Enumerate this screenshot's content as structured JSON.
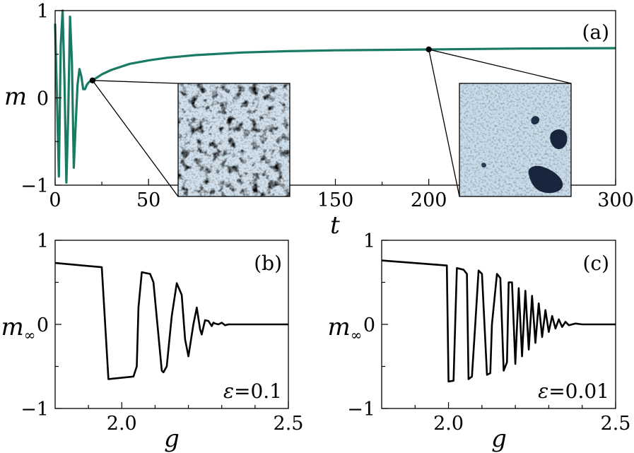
{
  "colors": {
    "trace_a": "#1a7a64",
    "trace_bc": "#000000",
    "inset_light": "#c7dbe9",
    "inset_dark": "#14223a"
  },
  "chart_data": [
    {
      "id": "a",
      "type": "line",
      "panel_label": "(a)",
      "xlabel": "t",
      "ylabel": "m",
      "xlim": [
        0,
        300
      ],
      "ylim": [
        -1,
        1
      ],
      "xticks": [
        0,
        50,
        150,
        200,
        300
      ],
      "xtick_labels": [
        "0",
        "50",
        "150",
        "200",
        "300"
      ],
      "yticks": [
        -1,
        0,
        1
      ],
      "ytick_labels": [
        "−1",
        "0",
        "1"
      ],
      "series": [
        {
          "name": "m(t)",
          "x": [
            0,
            1,
            2,
            3,
            4,
            5,
            6,
            7,
            8,
            9,
            10,
            11,
            12,
            13,
            14,
            15,
            16,
            17,
            18,
            19,
            20,
            25,
            30,
            40,
            50,
            60,
            75,
            100,
            125,
            150,
            175,
            200,
            225,
            250,
            275,
            300
          ],
          "y": [
            0.85,
            0.0,
            -0.9,
            0.6,
            1.0,
            0.2,
            -0.97,
            -0.2,
            0.93,
            0.4,
            -0.8,
            -0.3,
            0.15,
            0.33,
            0.25,
            0.1,
            0.1,
            0.15,
            0.18,
            0.19,
            0.2,
            0.27,
            0.32,
            0.39,
            0.43,
            0.46,
            0.49,
            0.52,
            0.535,
            0.545,
            0.55,
            0.555,
            0.56,
            0.565,
            0.568,
            0.57
          ]
        }
      ],
      "markers": [
        {
          "x": 20,
          "y": 0.2
        },
        {
          "x": 200,
          "y": 0.555
        }
      ],
      "insets": [
        {
          "name": "snapshot-t20",
          "pattern": "coarsening domains",
          "at_t": 20
        },
        {
          "name": "snapshot-t200",
          "pattern": "isolated droplets",
          "at_t": 200
        }
      ]
    },
    {
      "id": "b",
      "type": "line",
      "panel_label": "(b)",
      "annotation": {
        "symbol": "ε",
        "text": "=0.1"
      },
      "xlabel": "g",
      "ylabel": "m",
      "ylabel_sub": "∞",
      "xlim": [
        1.8,
        2.5
      ],
      "ylim": [
        -1,
        1
      ],
      "xticks": [
        2.0,
        2.5
      ],
      "xtick_labels": [
        "2.0",
        "2.5"
      ],
      "yticks": [
        -1,
        0,
        1
      ],
      "ytick_labels": [
        "−1",
        "0",
        "1"
      ],
      "series": [
        {
          "name": "m_inf(g)",
          "x": [
            1.8,
            1.94,
            1.96,
            2.035,
            2.045,
            2.05,
            2.06,
            2.085,
            2.095,
            2.12,
            2.125,
            2.135,
            2.15,
            2.165,
            2.18,
            2.19,
            2.2,
            2.215,
            2.225,
            2.235,
            2.24,
            2.25,
            2.26,
            2.27,
            2.275,
            2.28,
            2.29,
            2.3,
            2.31,
            2.32,
            2.35,
            2.4,
            2.45,
            2.5
          ],
          "y": [
            0.73,
            0.68,
            -0.65,
            -0.62,
            -0.5,
            0.2,
            0.62,
            0.6,
            0.5,
            -0.55,
            -0.57,
            -0.5,
            0.1,
            0.49,
            0.35,
            -0.18,
            -0.38,
            0.0,
            0.2,
            -0.06,
            -0.12,
            0.05,
            0.04,
            -0.02,
            0.02,
            0.01,
            0.0,
            0.02,
            -0.01,
            0.0,
            0.0,
            0.0,
            0.0,
            0.0
          ]
        }
      ]
    },
    {
      "id": "c",
      "type": "line",
      "panel_label": "(c)",
      "annotation": {
        "symbol": "ε",
        "text": "=0.01"
      },
      "xlabel": "g",
      "ylabel": "m",
      "ylabel_sub": "∞",
      "xlim": [
        1.8,
        2.5
      ],
      "ylim": [
        -1,
        1
      ],
      "xticks": [
        2.0,
        2.5
      ],
      "xtick_labels": [
        "2.0",
        "2.5"
      ],
      "yticks": [
        -1,
        0,
        1
      ],
      "ytick_labels": [
        "−1",
        "0",
        "1"
      ],
      "series": [
        {
          "name": "m_inf(g)",
          "x": [
            1.8,
            1.995,
            2.0,
            2.015,
            2.02,
            2.025,
            2.045,
            2.055,
            2.06,
            2.07,
            2.08,
            2.09,
            2.1,
            2.115,
            2.125,
            2.13,
            2.145,
            2.155,
            2.165,
            2.175,
            2.18,
            2.19,
            2.2,
            2.21,
            2.22,
            2.23,
            2.24,
            2.25,
            2.26,
            2.27,
            2.28,
            2.29,
            2.3,
            2.31,
            2.32,
            2.33,
            2.34,
            2.35,
            2.36,
            2.38,
            2.4,
            2.45,
            2.5
          ],
          "y": [
            0.76,
            0.7,
            -0.68,
            -0.67,
            0.0,
            0.67,
            0.65,
            0.6,
            -0.65,
            -0.62,
            0.0,
            0.64,
            0.6,
            -0.6,
            -0.58,
            0.0,
            0.6,
            0.55,
            -0.55,
            -0.45,
            0.5,
            0.5,
            -0.47,
            0.43,
            -0.38,
            0.4,
            -0.3,
            0.34,
            -0.22,
            0.25,
            -0.15,
            0.17,
            -0.09,
            0.1,
            -0.05,
            0.06,
            -0.03,
            0.03,
            -0.01,
            0.01,
            0.0,
            0.0,
            0.0
          ]
        }
      ]
    }
  ]
}
